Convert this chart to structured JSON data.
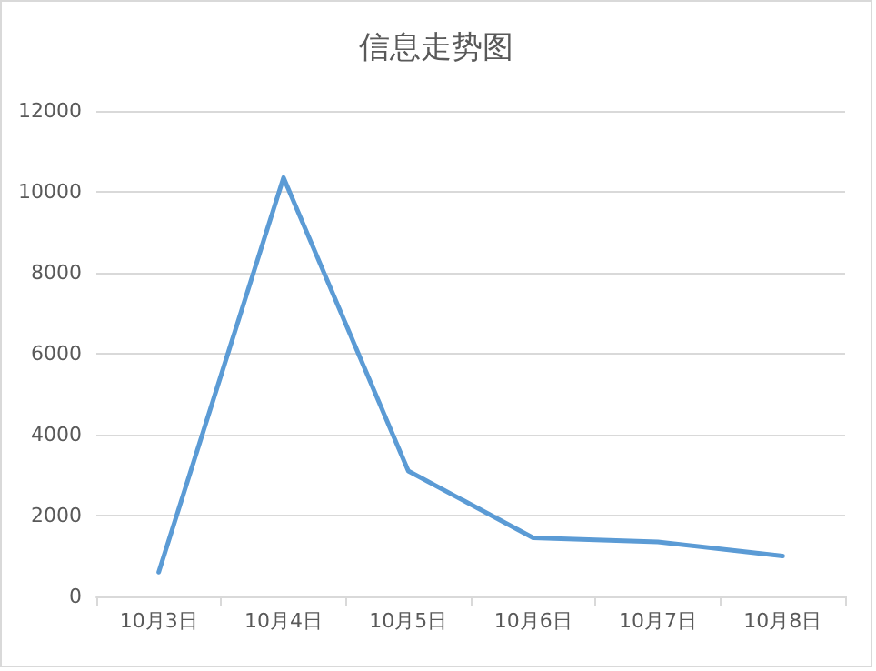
{
  "chart_data": {
    "type": "line",
    "title": "信息走势图",
    "categories": [
      "10月3日",
      "10月4日",
      "10月5日",
      "10月6日",
      "10月7日",
      "10月8日"
    ],
    "series": [
      {
        "color": "#5b9bd5",
        "values": [
          600,
          10350,
          3100,
          1450,
          1350,
          1000
        ]
      }
    ],
    "ylim": [
      0,
      12000
    ],
    "yticks": [
      0,
      2000,
      4000,
      6000,
      8000,
      10000,
      12000
    ],
    "grid": "y",
    "marker": "none",
    "line_style": "solid"
  }
}
